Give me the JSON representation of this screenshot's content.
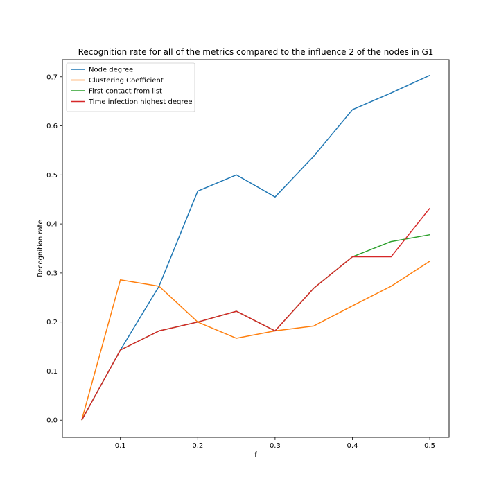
{
  "chart_data": {
    "type": "line",
    "title": "Recognition rate for all of the metrics compared to the influence 2 of the nodes in G1",
    "xlabel": "f",
    "ylabel": "Recognition rate",
    "xlim": [
      0.025,
      0.525
    ],
    "ylim": [
      -0.035,
      0.735
    ],
    "x_ticks": [
      "0.1",
      "0.2",
      "0.3",
      "0.4",
      "0.5"
    ],
    "y_ticks": [
      "0.0",
      "0.1",
      "0.2",
      "0.3",
      "0.4",
      "0.5",
      "0.6",
      "0.7"
    ],
    "x": [
      0.05,
      0.1,
      0.15,
      0.2,
      0.25,
      0.3,
      0.35,
      0.4,
      0.45,
      0.5
    ],
    "legend_position": "top-left",
    "grid": false,
    "series": [
      {
        "name": "Node degree",
        "color": "#1f77b4",
        "values": [
          0.0,
          0.143,
          0.273,
          0.467,
          0.5,
          0.455,
          0.538,
          0.633,
          0.667,
          0.703
        ]
      },
      {
        "name": "Clustering Coefficient",
        "color": "#ff7f0e",
        "values": [
          0.0,
          0.286,
          0.273,
          0.2,
          0.167,
          0.182,
          0.192,
          0.233,
          0.273,
          0.324
        ]
      },
      {
        "name": "First contact from list",
        "color": "#2ca02c",
        "values": [
          0.0,
          0.143,
          0.182,
          0.2,
          0.222,
          0.182,
          0.269,
          0.333,
          0.364,
          0.378
        ]
      },
      {
        "name": "Time infection highest degree",
        "color": "#d62728",
        "values": [
          0.0,
          0.143,
          0.182,
          0.2,
          0.222,
          0.182,
          0.269,
          0.333,
          0.333,
          0.432
        ]
      }
    ]
  }
}
